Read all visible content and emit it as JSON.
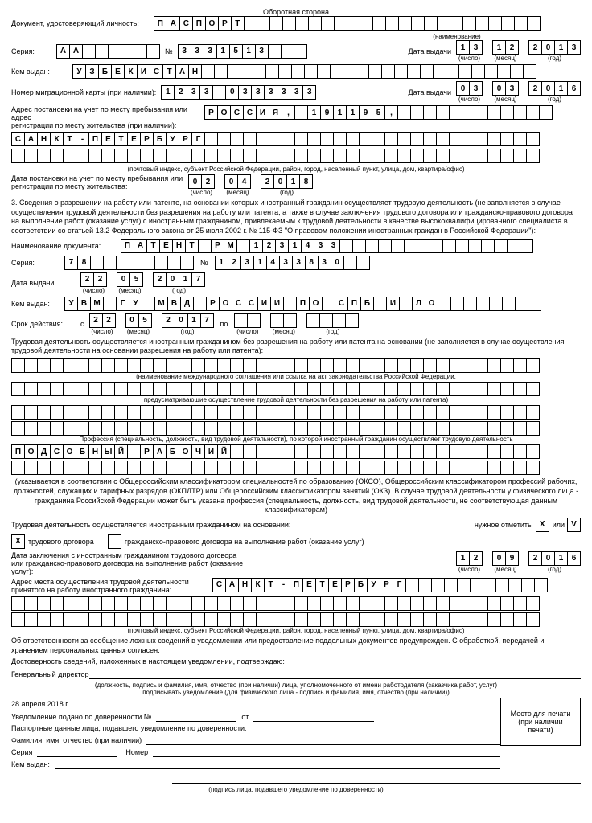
{
  "header": "Оборотная сторона",
  "doc_label": "Документ, удостоверяющий личность:",
  "doc_value": "ПАСПОРТ",
  "doc_name_sub": "(наименование)",
  "series_label": "Серия:",
  "series": "АА",
  "num_label": "№",
  "num": "3331513",
  "issue_date_label": "Дата выдачи",
  "day": "13",
  "month": "12",
  "year": "2013",
  "day_sub": "(число)",
  "month_sub": "(месяц)",
  "year_sub": "(год)",
  "issued_by_label": "Кем выдан:",
  "issued_by": "УЗБЕКИСТАН",
  "migr_label": "Номер миграционной карты (при наличии):",
  "migr_num": "1233 0333333",
  "migr_day": "03",
  "migr_month": "03",
  "migr_year": "2016",
  "addr_label1": "Адрес постановки на учет по месту пребывания или адрес",
  "addr_label2": "регистрации по месту жительства (при наличии):",
  "addr_line1": "РОССИЯ, 191195,",
  "addr_line2": "САНКТ-ПЕТЕРБУРГ",
  "addr_sub": "(почтовый индекс, субъект Российской Федерации, район, город, населенный пункт, улица, дом, квартира/офис)",
  "reg_date_label1": "Дата постановки на учет по месту пребывания или",
  "reg_date_label2": "регистрации по месту жительства:",
  "reg_day": "02",
  "reg_month": "04",
  "reg_year": "2018",
  "section3": "3. Сведения о разрешении на работу или патенте, на основании которых иностранный гражданин осуществляет трудовую деятельность (не заполняется в случае осуществления трудовой деятельности без разрешения на работу или патента, а также в случае заключения трудового договора или гражданско-правового договора на выполнение работ (оказание услуг) с иностранным гражданином, привлекаемым к трудовой деятельности в качестве высококвалифицированного специалиста в соответствии со статьей 13.2 Федерального закона от 25 июля 2002 г. № 115-ФЗ \"О правовом положении иностранных граждан в Российской Федерации\"):",
  "docname_label": "Наименование документа:",
  "docname": "ПАТЕНТ РМ 1231433",
  "pat_series_label": "Серия:",
  "pat_series": "78",
  "pat_num": "1231433830",
  "pat_date_label": "Дата выдачи",
  "pat_day": "22",
  "pat_month": "05",
  "pat_year": "2017",
  "pat_issued_label": "Кем выдан:",
  "pat_issued": "УВМ ГУ МВД РОССИИ ПО СПБ И ЛО",
  "valid_label": "Срок действия:",
  "from": "с",
  "to": "по",
  "valid_day": "22",
  "valid_month": "05",
  "valid_year": "2017",
  "basis_text": "Трудовая деятельность осуществляется иностранным гражданином без разрешения на работу или патента на основании (не заполняется в случае осуществления трудовой деятельности на основании разрешения на работу или патента):",
  "basis_sub1": "(наименование международного соглашения или ссылка на акт законодательства Российской Федерации,",
  "basis_sub2": "предусматривающие осуществление трудовой деятельности без разрешения на работу или патента)",
  "prof_sub": "Профессия (специальность, должность, вид трудовой деятельности), по которой иностранный гражданин осуществляет трудовую деятельность",
  "profession": "ПОДСОБНЫЙ РАБОЧИЙ",
  "prof_note": "(указывается в соответствии с Общероссийским классификатором специальностей по образованию (ОКСО), Общероссийским классификатором профессий рабочих, должностей, служащих и тарифных разрядов (ОКПДТР) или Общероссийским классификатором занятий (ОКЗ). В случае трудовой деятельности у физического лица - гражданина Российской Федерации может быть указана профессия (специальность, должность, вид трудовой деятельности, не соответствующая данным классификаторам)",
  "activity_basis": "Трудовая деятельность осуществляется иностранным гражданином на основании:",
  "mark_label": "нужное отметить",
  "or": "или",
  "x": "X",
  "v": "V",
  "contract1": "трудового договора",
  "contract2": "гражданско-правового договора на выполнение работ (оказание услуг)",
  "contract_date_label1": "Дата заключения с иностранным гражданином трудового договора",
  "contract_date_label2": "или гражданско-правового договора на выполнение работ (оказание услуг):",
  "c_day": "12",
  "c_month": "09",
  "c_year": "2016",
  "workplace_label1": "Адрес места осуществления трудовой деятельности",
  "workplace_label2": "принятого на работу иностранного гражданина:",
  "workplace": "САНКТ-ПЕТЕРБУРГ",
  "responsibility": "Об ответственности за сообщение ложных сведений в уведомлении или предоставление поддельных документов предупрежден. С обработкой, передачей и хранением персональных данных согласен.",
  "confirm": "Достоверность сведений, изложенных в настоящем уведомлении, подтверждаю:",
  "director": "Генеральный директор",
  "director_sub1": "(должность, подпись и фамилия, имя, отчество (при наличии) лица, уполномоченного от имени работодателя (заказчика работ, услуг)",
  "director_sub2": "подписывать уведомление (для физического лица - подпись и фамилия, имя, отчество (при наличии))",
  "date_footer": "28 апреля 2018 г.",
  "seal": "Место для печати",
  "seal2": "(при наличии",
  "seal3": "печати)",
  "proxy_label": "Уведомление подано по доверенности №",
  "from_label": "от",
  "passport_proxy": "Паспортные данные лица, подавшего уведомление по доверенности:",
  "fio_label": "Фамилия, имя, отчество (при наличии)",
  "series_footer": "Серия",
  "num_footer": "Номер",
  "issued_footer": "Кем выдан:",
  "sign_sub": "(подпись лица, подавшего уведомление по доверенности)"
}
